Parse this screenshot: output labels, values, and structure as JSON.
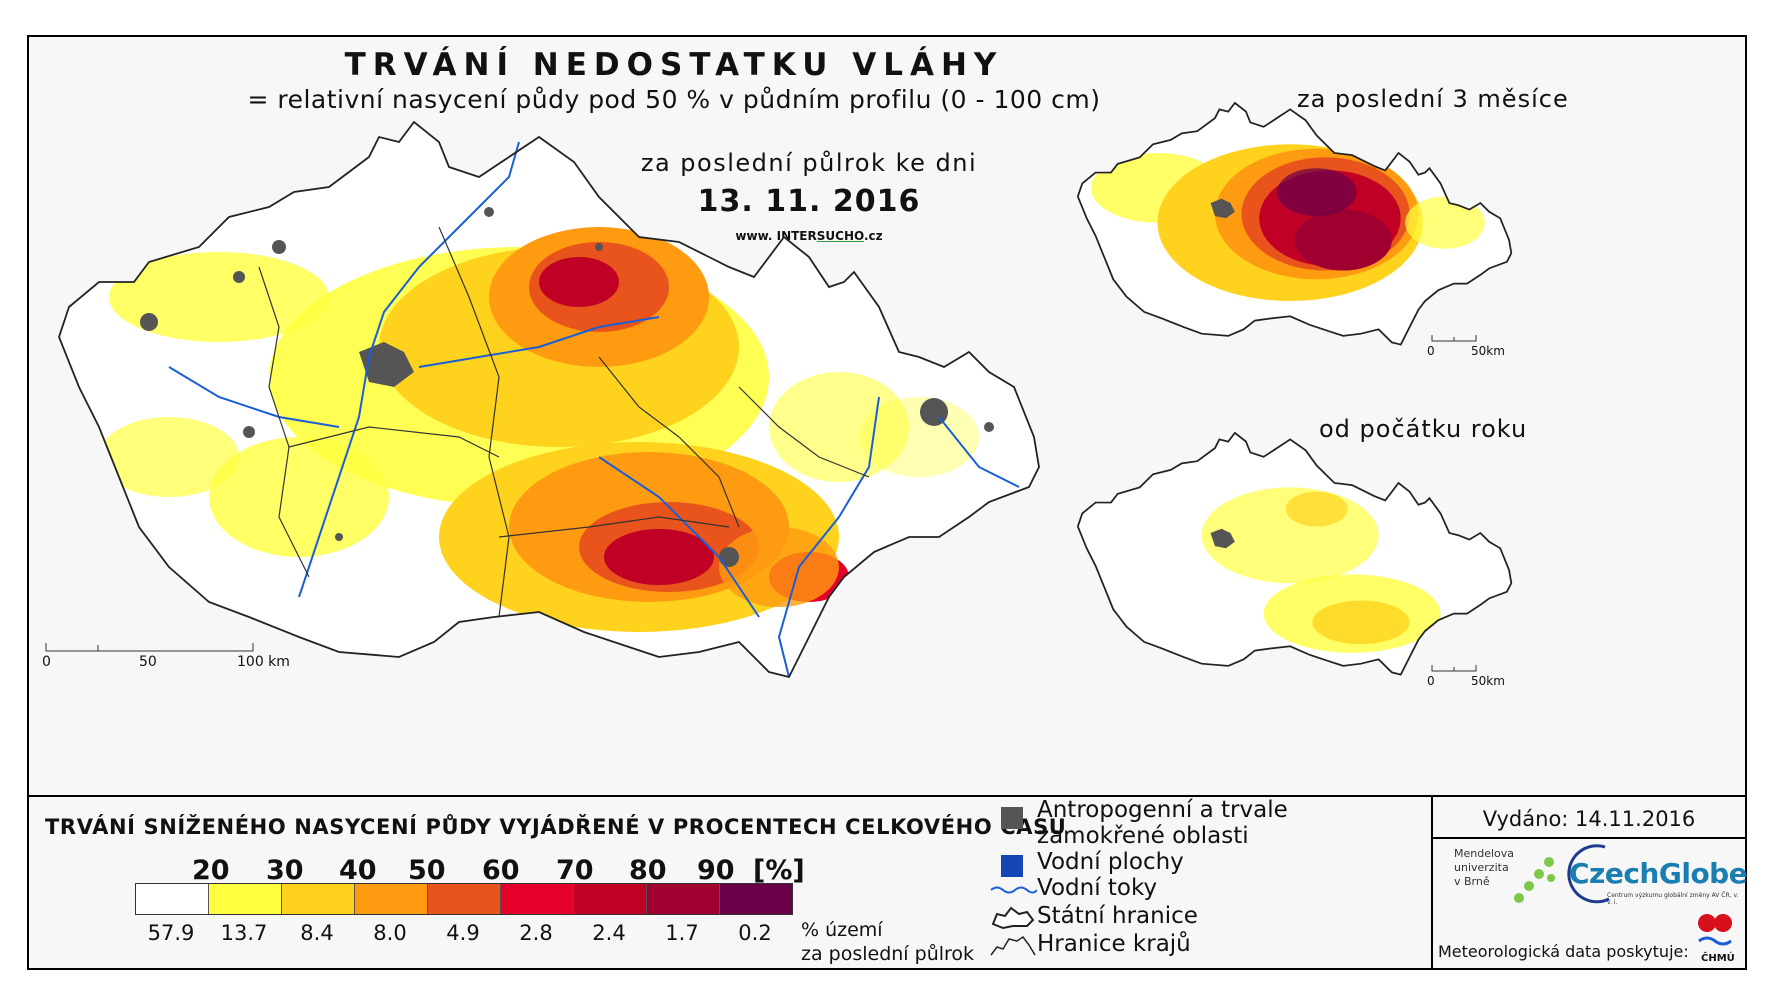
{
  "title": "TRVÁNÍ NEDOSTATKU VLÁHY",
  "subtitle": "= relativní nasycení půdy pod 50 % v půdním profilu (0 - 100 cm)",
  "period_label": "za poslední půlrok ke dni",
  "date": "13. 11. 2016",
  "website": {
    "prefix": "www. INTER",
    "highlight": "SUCHO",
    "suffix": ".cz"
  },
  "insets": {
    "three_months": "za poslední 3 měsíce",
    "year_start": "od počátku roku"
  },
  "main_scale": {
    "labels": [
      "0",
      "50",
      "100 km"
    ]
  },
  "inset_scale": {
    "labels": [
      "0",
      "50km"
    ]
  },
  "legend": {
    "title": "TRVÁNÍ SNÍŽENÉHO NASYCENÍ PŮDY VYJÁDŘENÉ V PROCENTECH CELKOVÉHO ČASU",
    "ticks": [
      "20",
      "30",
      "40",
      "50",
      "60",
      "70",
      "80",
      "90"
    ],
    "unit": "[%]",
    "classes": [
      {
        "color": "#ffffff",
        "share": "57.9"
      },
      {
        "color": "#ffff40",
        "share": "13.7"
      },
      {
        "color": "#ffd21e",
        "share": "8.4"
      },
      {
        "color": "#ff9b10",
        "share": "8.0"
      },
      {
        "color": "#e8541c",
        "share": "4.9"
      },
      {
        "color": "#e5002b",
        "share": "2.8"
      },
      {
        "color": "#c00024",
        "share": "2.4"
      },
      {
        "color": "#a00030",
        "share": "1.7"
      },
      {
        "color": "#6a004a",
        "share": "0.2"
      }
    ],
    "share_label_line1": "% území",
    "share_label_line2": "za poslední půlrok"
  },
  "symbols": [
    {
      "icon": "grey-square-icon",
      "label_line1": "Antropogenní a trvale",
      "label_line2": "zamokřené oblasti"
    },
    {
      "icon": "blue-square-icon",
      "label_line1": "Vodní plochy"
    },
    {
      "icon": "river-line-icon",
      "label_line1": "Vodní toky"
    },
    {
      "icon": "state-border-icon",
      "label_line1": "Státní hranice"
    },
    {
      "icon": "region-border-icon",
      "label_line1": "Hranice krajů"
    }
  ],
  "issued": "Vydáno: 14.11.2016",
  "logos": {
    "mendel": [
      "Mendelova",
      "univerzita",
      "v Brně"
    ],
    "czechglobe": "CzechGlobe",
    "czechglobe_sub": "Centrum výzkumu globální změny AV ČR, v. v. i.",
    "chmu": "ČHMÚ"
  },
  "meteo_credit": "Meteorologická data poskytuje:",
  "colors": {
    "river": "#1a5fd6",
    "urban": "#555555",
    "water": "#1446b8"
  }
}
